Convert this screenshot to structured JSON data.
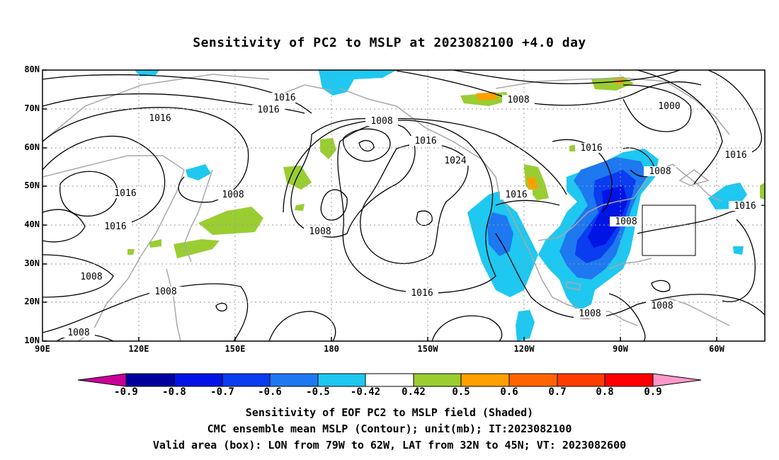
{
  "title": "Sensitivity of PC2 to MSLP at 2023082100 +4.0 day",
  "lat_labels": [
    "80N",
    "70N",
    "60N",
    "50N",
    "40N",
    "30N",
    "20N",
    "10N"
  ],
  "lon_labels": [
    "90E",
    "120E",
    "150E",
    "180",
    "150W",
    "120W",
    "90W",
    "60W"
  ],
  "colorbar": {
    "labels": [
      "-0.9",
      "-0.8",
      "-0.7",
      "-0.6",
      "-0.5",
      "-0.42",
      "0.42",
      "0.5",
      "0.6",
      "0.7",
      "0.8",
      "0.9"
    ],
    "colors": [
      "#cc0099",
      "#0000a0",
      "#0014e6",
      "#0a3cf0",
      "#1e78f0",
      "#1ec8f0",
      "#ffffff",
      "#9acd32",
      "#ffa000",
      "#ff6400",
      "#ff3c00",
      "#ff0000",
      "#ff99cc"
    ]
  },
  "contour_labels": [
    "1016",
    "1016",
    "1016",
    "1008",
    "1016",
    "1024",
    "1008",
    "1000",
    "1016",
    "1008",
    "1016",
    "1016",
    "1008",
    "1016",
    "1016",
    "1008",
    "1008",
    "1008",
    "1016",
    "1008",
    "1008",
    "1008",
    "1008",
    "1016"
  ],
  "captions": [
    "Sensitivity of EOF PC2 to MSLP field (Shaded)",
    "CMC ensemble mean MSLP (Contour); unit(mb); IT:2023082100",
    "Valid area (box): LON from 79W to 62W, LAT from 32N to 45N; VT: 2023082600"
  ]
}
